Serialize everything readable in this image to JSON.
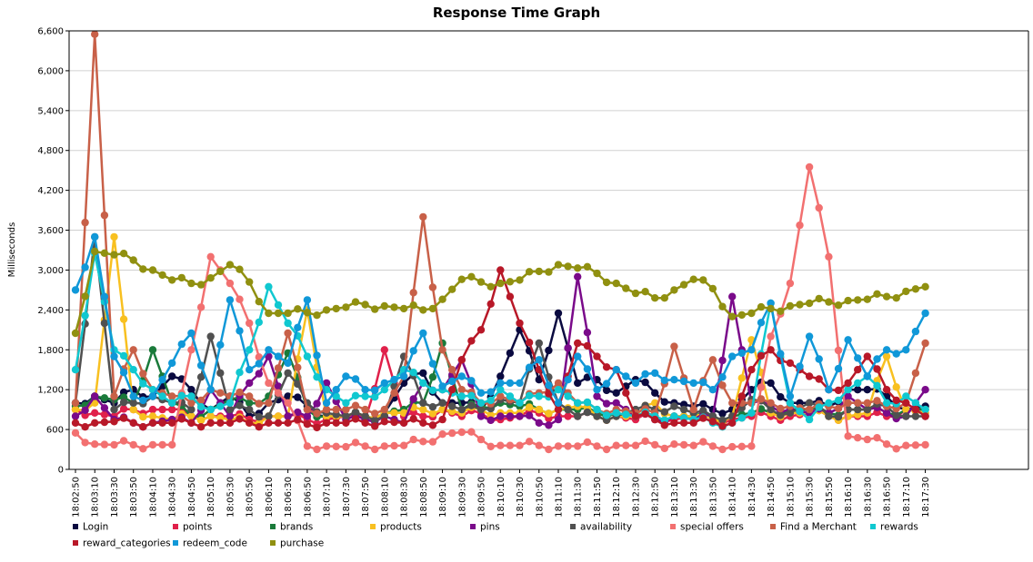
{
  "chart_data": {
    "type": "line",
    "title": "Response Time Graph",
    "ylabel": "Milliseconds",
    "xlabel": "",
    "ylim": [
      0,
      6600
    ],
    "yticks": [
      "0",
      "600",
      "1,200",
      "1,800",
      "2,400",
      "3,000",
      "3,600",
      "4,200",
      "4,800",
      "5,400",
      "6,000",
      "6,600"
    ],
    "ytick_values": [
      0,
      600,
      1200,
      1800,
      2400,
      3000,
      3600,
      4200,
      4800,
      5400,
      6000,
      6600
    ],
    "x": [
      "18:02:50",
      "18:03:10",
      "18:03:30",
      "18:03:50",
      "18:04:10",
      "18:04:30",
      "18:04:50",
      "18:05:10",
      "18:05:30",
      "18:05:50",
      "18:06:10",
      "18:06:30",
      "18:06:50",
      "18:07:10",
      "18:07:30",
      "18:07:50",
      "18:08:10",
      "18:08:30",
      "18:08:50",
      "18:09:10",
      "18:09:30",
      "18:09:50",
      "18:10:10",
      "18:10:30",
      "18:10:50",
      "18:11:10",
      "18:11:30",
      "18:11:50",
      "18:12:10",
      "18:12:30",
      "18:12:50",
      "18:13:10",
      "18:13:30",
      "18:13:50",
      "18:14:10",
      "18:14:30",
      "18:14:50",
      "18:15:10",
      "18:15:30",
      "18:15:50",
      "18:16:10",
      "18:16:30",
      "18:16:50",
      "18:17:10",
      "18:17:30"
    ],
    "series": [
      {
        "name": "Login",
        "color": "#0a0a40",
        "values": [
          1000,
          1100,
          1000,
          1200,
          1100,
          1400,
          1200,
          900,
          1100,
          800,
          1000,
          1100,
          950,
          800,
          800,
          800,
          850,
          1300,
          1450,
          1000,
          1000,
          900,
          1400,
          2100,
          1350,
          2350,
          1300,
          1350,
          1150,
          1350,
          1150,
          1000,
          950,
          900,
          900,
          1200,
          1300,
          1000,
          1000,
          950,
          1200,
          1200,
          1100,
          900,
          950
        ]
      },
      {
        "name": "points",
        "color": "#e0204a",
        "values": [
          900,
          850,
          800,
          900,
          900,
          900,
          800,
          800,
          800,
          750,
          800,
          800,
          750,
          750,
          800,
          750,
          1800,
          800,
          800,
          900,
          800,
          850,
          750,
          800,
          850,
          800,
          800,
          800,
          800,
          750,
          800,
          750,
          800,
          750,
          750,
          800,
          800,
          800,
          850,
          800,
          800,
          800,
          800,
          900,
          850
        ]
      },
      {
        "name": "brands",
        "color": "#1a7a3a",
        "values": [
          950,
          1100,
          1050,
          1000,
          1800,
          1000,
          800,
          900,
          1050,
          1000,
          1100,
          1750,
          900,
          800,
          800,
          800,
          850,
          900,
          1000,
          1900,
          900,
          950,
          1000,
          950,
          900,
          900,
          900,
          850,
          850,
          800,
          800,
          800,
          800,
          800,
          800,
          850,
          850,
          900,
          900,
          850,
          900,
          900,
          850,
          900,
          900
        ]
      },
      {
        "name": "products",
        "color": "#f8c020",
        "values": [
          900,
          1000,
          3500,
          900,
          800,
          750,
          800,
          800,
          750,
          700,
          800,
          800,
          2400,
          800,
          800,
          800,
          850,
          850,
          900,
          900,
          850,
          900,
          850,
          850,
          900,
          900,
          950,
          800,
          800,
          800,
          1000,
          800,
          800,
          750,
          800,
          1950,
          850,
          850,
          850,
          800,
          800,
          850,
          1700,
          900,
          850
        ]
      },
      {
        "name": "pins",
        "color": "#7a0a8a",
        "values": [
          800,
          1100,
          750,
          700,
          700,
          750,
          700,
          1200,
          800,
          1300,
          1700,
          800,
          800,
          1300,
          750,
          750,
          800,
          700,
          1300,
          1200,
          1650,
          800,
          800,
          800,
          700,
          750,
          2900,
          1100,
          1000,
          800,
          750,
          800,
          750,
          800,
          2600,
          1000,
          950,
          900,
          850,
          850,
          1100,
          900,
          850,
          800,
          1200
        ]
      },
      {
        "name": "availability",
        "color": "#505050",
        "values": [
          1000,
          3500,
          900,
          1000,
          1100,
          1000,
          900,
          2000,
          900,
          900,
          800,
          1450,
          1000,
          850,
          800,
          800,
          800,
          1700,
          1000,
          1000,
          900,
          900,
          1050,
          1000,
          1900,
          1000,
          800,
          800,
          800,
          900,
          900,
          950,
          850,
          800,
          800,
          1050,
          900,
          850,
          1000,
          800,
          900,
          900,
          950,
          800,
          800
        ]
      },
      {
        "name": "special offers",
        "color": "#f27070",
        "values": [
          550,
          380,
          370,
          370,
          370,
          370,
          1800,
          3200,
          2800,
          2200,
          1300,
          1000,
          350,
          350,
          340,
          350,
          350,
          360,
          420,
          530,
          560,
          450,
          360,
          360,
          360,
          350,
          350,
          350,
          360,
          360,
          370,
          380,
          360,
          350,
          340,
          350,
          2000,
          2800,
          4550,
          3200,
          500,
          450,
          380,
          360,
          370
        ]
      },
      {
        "name": "Find a Merchant",
        "color": "#c86048",
        "values": [
          1000,
          6550,
          1100,
          1800,
          1200,
          1100,
          1000,
          1200,
          1100,
          1100,
          1000,
          2050,
          900,
          900,
          900,
          900,
          900,
          1400,
          3800,
          1800,
          1200,
          1000,
          1100,
          1000,
          1150,
          1300,
          1000,
          900,
          900,
          850,
          850,
          1850,
          900,
          1650,
          1000,
          1000,
          1000,
          950,
          900,
          950,
          1000,
          1000,
          950,
          1000,
          1900
        ]
      },
      {
        "name": "rewards",
        "color": "#10c8d0",
        "values": [
          1500,
          3250,
          1800,
          1500,
          1200,
          1000,
          1100,
          900,
          1000,
          1800,
          2750,
          2200,
          1700,
          1200,
          1000,
          1100,
          1200,
          1500,
          1300,
          1200,
          1100,
          1000,
          1200,
          1000,
          1100,
          1200,
          1000,
          900,
          850,
          800,
          800,
          800,
          750,
          700,
          700,
          850,
          2500,
          1000,
          750,
          1000,
          1200,
          1400,
          1000,
          1100,
          900
        ]
      },
      {
        "name": "reward_categories",
        "color": "#b81828",
        "values": [
          700,
          700,
          720,
          700,
          700,
          700,
          700,
          700,
          700,
          700,
          700,
          700,
          680,
          700,
          700,
          700,
          720,
          700,
          700,
          750,
          1650,
          2100,
          3000,
          2200,
          1500,
          900,
          1900,
          1700,
          1500,
          800,
          750,
          700,
          700,
          720,
          700,
          1500,
          1800,
          1600,
          1400,
          1200,
          1300,
          1700,
          1200,
          1000,
          800
        ]
      },
      {
        "name": "redeem_code",
        "color": "#1098d8",
        "values": [
          2700,
          3500,
          1700,
          1100,
          1100,
          1600,
          2050,
          1200,
          2550,
          1500,
          1800,
          1600,
          2550,
          1000,
          1400,
          1200,
          1300,
          1400,
          2050,
          1250,
          1400,
          1150,
          1300,
          1300,
          1650,
          1000,
          1700,
          1200,
          1500,
          1300,
          1450,
          1350,
          1300,
          1200,
          1700,
          1800,
          2500,
          1100,
          2000,
          1200,
          1950,
          1400,
          1800,
          1800,
          2350
        ]
      },
      {
        "name": "purchase",
        "color": "#909010",
        "values": [
          2050,
          3280,
          3230,
          3150,
          3000,
          2850,
          2800,
          2880,
          3080,
          2820,
          2350,
          2350,
          2360,
          2400,
          2440,
          2480,
          2460,
          2420,
          2400,
          2560,
          2860,
          2820,
          2800,
          2850,
          2980,
          3080,
          3030,
          2950,
          2800,
          2650,
          2580,
          2700,
          2860,
          2720,
          2300,
          2350,
          2420,
          2460,
          2500,
          2520,
          2540,
          2560,
          2600,
          2680,
          2750
        ]
      }
    ]
  }
}
